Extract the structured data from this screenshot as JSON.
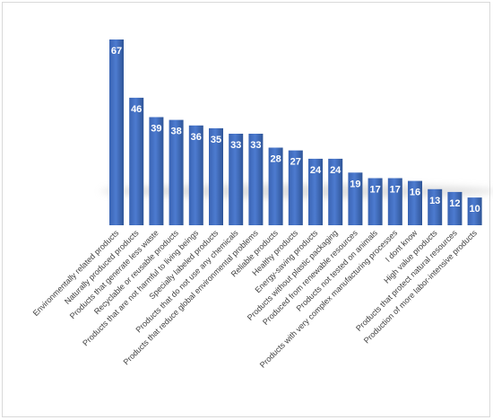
{
  "chart_data": {
    "type": "bar",
    "title": "",
    "xlabel": "",
    "ylabel": "",
    "ylim": [
      0,
      67
    ],
    "grid": false,
    "legend": "none",
    "bar_color": "#4472c4",
    "bar_color_dark": "#2f5597",
    "categories": [
      "Environmentally related products",
      "Naturally produced products",
      "Products that generate less waste",
      "Recyclable or reusable products",
      "Products that are not harmful to living beings",
      "Specially labeled products",
      "Products that do not use any chemicals",
      "Products that reduce global environmental problems",
      "Reliable products",
      "Healthy products",
      "Energy-saving products",
      "Products without plastic packaging",
      "Produced from renewable resources",
      "Products not tested on animals",
      "Products with very complex manufacturing processes",
      "I dont know",
      "High value products",
      "Products that protect natural resources",
      "Production of more labor-intensive products"
    ],
    "values": [
      67,
      46,
      39,
      38,
      36,
      35,
      33,
      33,
      28,
      27,
      24,
      24,
      19,
      17,
      17,
      16,
      13,
      12,
      10
    ]
  }
}
